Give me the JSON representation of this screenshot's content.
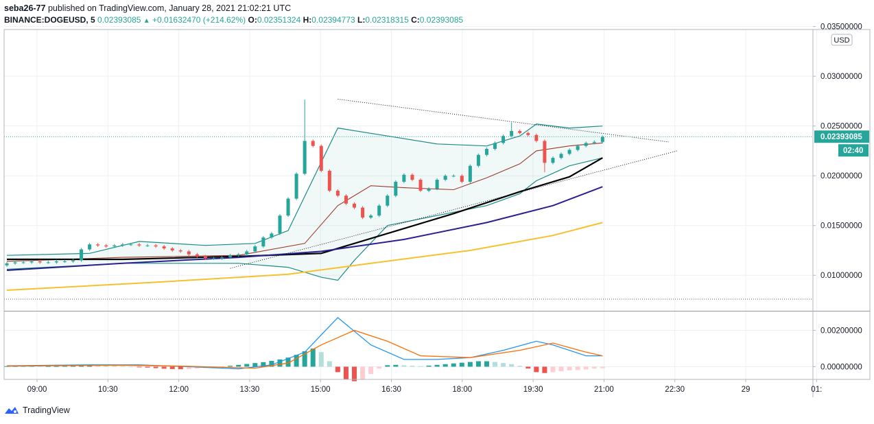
{
  "header": {
    "author": "seba26-77",
    "published_text": "published on TradingView.com, January 28, 2021 21:02:21 UTC",
    "symbol": "BINANCE:DOGEUSD, 5",
    "last_price": "0.02393085",
    "change": "+0.01632470 (+214.62%)",
    "o_label": "O:",
    "o_value": "0.02351324",
    "h_label": "H:",
    "h_value": "0.02394773",
    "l_label": "L:",
    "l_value": "0.02318315",
    "c_label": "C:",
    "c_value": "0.02393085"
  },
  "footer": {
    "brand": "TradingView"
  },
  "chart_data": [
    {
      "type": "candlestick",
      "title": "BINANCE:DOGEUSD, 5",
      "currency_label": "USD",
      "current_price_label": "0.02393085",
      "countdown_label": "02:40",
      "current_price": 0.02393085,
      "ylim": [
        0.0065,
        0.0347
      ],
      "y_ticks": [
        0.01,
        0.015,
        0.02,
        0.025,
        0.03,
        0.035
      ],
      "y_tick_labels": [
        "0.01000000",
        "0.01500000",
        "0.02000000",
        "0.02500000",
        "0.03000000",
        "0.03500000"
      ],
      "x_ticks": [
        "09:00",
        "10:30",
        "12:00",
        "13:30",
        "15:00",
        "16:30",
        "18:00",
        "19:30",
        "21:00",
        "22:30",
        "29",
        "01:"
      ],
      "dotted_reference_level": 0.0076,
      "close_series": [
        0.0112,
        0.0113,
        0.0113,
        0.0114,
        0.0113,
        0.0113,
        0.0114,
        0.0114,
        0.0115,
        0.0126,
        0.0131,
        0.013,
        0.0129,
        0.013,
        0.0131,
        0.0131,
        0.013,
        0.013,
        0.0129,
        0.0127,
        0.0125,
        0.0124,
        0.0121,
        0.0119,
        0.0117,
        0.0117,
        0.0118,
        0.012,
        0.0121,
        0.0124,
        0.0129,
        0.0138,
        0.0142,
        0.016,
        0.0177,
        0.0202,
        0.0235,
        0.023,
        0.0205,
        0.0185,
        0.018,
        0.0172,
        0.0168,
        0.0158,
        0.016,
        0.017,
        0.018,
        0.0194,
        0.0201,
        0.0196,
        0.0185,
        0.0187,
        0.0196,
        0.02,
        0.02,
        0.0194,
        0.021,
        0.0221,
        0.0227,
        0.0233,
        0.024,
        0.0245,
        0.0243,
        0.0241,
        0.0235,
        0.0213,
        0.0218,
        0.0222,
        0.0226,
        0.023,
        0.0233,
        0.0234,
        0.0239
      ],
      "moving_averages": [
        {
          "name": "MA fast",
          "color": "#000000",
          "points": [
            [
              0,
              0.0116
            ],
            [
              14,
              0.0116
            ],
            [
              28,
              0.0119
            ],
            [
              38,
              0.0122
            ],
            [
              46,
              0.0142
            ],
            [
              54,
              0.0162
            ],
            [
              62,
              0.0184
            ],
            [
              68,
              0.0199
            ],
            [
              72,
              0.0218
            ]
          ]
        },
        {
          "name": "MA medium",
          "color": "#2a1f8f",
          "points": [
            [
              0,
              0.0105
            ],
            [
              14,
              0.0112
            ],
            [
              28,
              0.0118
            ],
            [
              38,
              0.0124
            ],
            [
              48,
              0.0136
            ],
            [
              58,
              0.0153
            ],
            [
              66,
              0.017
            ],
            [
              72,
              0.0189
            ]
          ]
        },
        {
          "name": "MA slow",
          "color": "#f6c12c",
          "points": [
            [
              0,
              0.0085
            ],
            [
              18,
              0.0093
            ],
            [
              34,
              0.0101
            ],
            [
              44,
              0.0112
            ],
            [
              56,
              0.0125
            ],
            [
              66,
              0.014
            ],
            [
              72,
              0.0153
            ]
          ]
        }
      ],
      "bollinger": {
        "upper": [
          [
            0,
            0.012
          ],
          [
            10,
            0.0122
          ],
          [
            16,
            0.0134
          ],
          [
            24,
            0.013
          ],
          [
            30,
            0.0132
          ],
          [
            34,
            0.0145
          ],
          [
            40,
            0.0248
          ],
          [
            46,
            0.024
          ],
          [
            52,
            0.0232
          ],
          [
            58,
            0.023
          ],
          [
            62,
            0.024
          ],
          [
            64,
            0.0252
          ],
          [
            68,
            0.0248
          ],
          [
            72,
            0.025
          ]
        ],
        "middle": [
          [
            0,
            0.0114
          ],
          [
            14,
            0.0118
          ],
          [
            28,
            0.012
          ],
          [
            36,
            0.0132
          ],
          [
            40,
            0.017
          ],
          [
            44,
            0.019
          ],
          [
            48,
            0.0188
          ],
          [
            54,
            0.0186
          ],
          [
            58,
            0.0198
          ],
          [
            62,
            0.0212
          ],
          [
            64,
            0.0225
          ],
          [
            68,
            0.023
          ],
          [
            72,
            0.0233
          ]
        ],
        "lower": [
          [
            0,
            0.0106
          ],
          [
            14,
            0.0112
          ],
          [
            28,
            0.0112
          ],
          [
            34,
            0.0108
          ],
          [
            38,
            0.0098
          ],
          [
            40,
            0.0095
          ],
          [
            42,
            0.0115
          ],
          [
            46,
            0.015
          ],
          [
            52,
            0.016
          ],
          [
            58,
            0.017
          ],
          [
            62,
            0.0182
          ],
          [
            64,
            0.0195
          ],
          [
            68,
            0.021
          ],
          [
            72,
            0.0218
          ]
        ]
      },
      "trendlines": [
        {
          "name": "upper resistance",
          "from": [
            40,
            0.0277
          ],
          "to": [
            80,
            0.0234
          ]
        },
        {
          "name": "lower support",
          "from": [
            27,
            0.0107
          ],
          "to": [
            81,
            0.0225
          ]
        }
      ]
    },
    {
      "type": "line",
      "title": "MACD",
      "ylim": [
        -0.0007,
        0.003
      ],
      "y_ticks": [
        0.0,
        0.002
      ],
      "y_tick_labels": [
        "0.00000000",
        "0.00200000"
      ],
      "histogram": [
        3e-05,
        3e-05,
        4e-05,
        4e-05,
        3e-05,
        3e-05,
        3e-05,
        4e-05,
        6e-05,
        8e-05,
        9e-05,
        8e-05,
        7e-05,
        5e-05,
        3e-05,
        1e-05,
        -2e-05,
        -5e-05,
        -8e-05,
        -0.00011,
        -0.00013,
        -0.00014,
        -0.00013,
        -0.0001,
        -7e-05,
        -4e-05,
        0.0,
        5e-05,
        0.0001,
        0.00015,
        0.0002,
        0.00025,
        0.00032,
        0.0004,
        0.0005,
        0.00065,
        0.00085,
        0.001,
        0.0008,
        0.0003,
        -0.0003,
        -0.0007,
        -0.0008,
        -0.0007,
        -0.0004,
        -0.0001,
        8e-05,
        0.0001,
        8e-05,
        5e-05,
        3e-05,
        6e-05,
        0.0001,
        0.00014,
        0.00018,
        0.00022,
        0.00026,
        0.0003,
        0.0003,
        0.00026,
        0.0002,
        0.00014,
        5e-05,
        -0.0001,
        -0.0003,
        -0.00035,
        -0.0003,
        -0.00025,
        -0.0002,
        -0.00018,
        -0.00015,
        -0.0001,
        -8e-05
      ],
      "macd_line": {
        "color": "#2196f3",
        "points": [
          [
            0,
            5e-05
          ],
          [
            10,
            0.0001
          ],
          [
            16,
            0.0001
          ],
          [
            22,
            0.0
          ],
          [
            28,
            -0.00012
          ],
          [
            32,
            0.0001
          ],
          [
            36,
            0.0008
          ],
          [
            40,
            0.0027
          ],
          [
            44,
            0.0012
          ],
          [
            48,
            0.0004
          ],
          [
            52,
            0.0004
          ],
          [
            56,
            0.0005
          ],
          [
            60,
            0.0009
          ],
          [
            64,
            0.0014
          ],
          [
            66,
            0.0012
          ],
          [
            70,
            0.0006
          ],
          [
            72,
            0.0006
          ]
        ]
      },
      "signal_line": {
        "color": "#ff6d00",
        "points": [
          [
            0,
            3e-05
          ],
          [
            14,
            8e-05
          ],
          [
            22,
            2e-05
          ],
          [
            30,
            -8e-05
          ],
          [
            34,
            0.0002
          ],
          [
            38,
            0.0012
          ],
          [
            42,
            0.002
          ],
          [
            46,
            0.0014
          ],
          [
            50,
            0.0006
          ],
          [
            56,
            0.0005
          ],
          [
            62,
            0.0009
          ],
          [
            66,
            0.0013
          ],
          [
            70,
            0.0008
          ],
          [
            72,
            0.0006
          ]
        ]
      }
    }
  ]
}
